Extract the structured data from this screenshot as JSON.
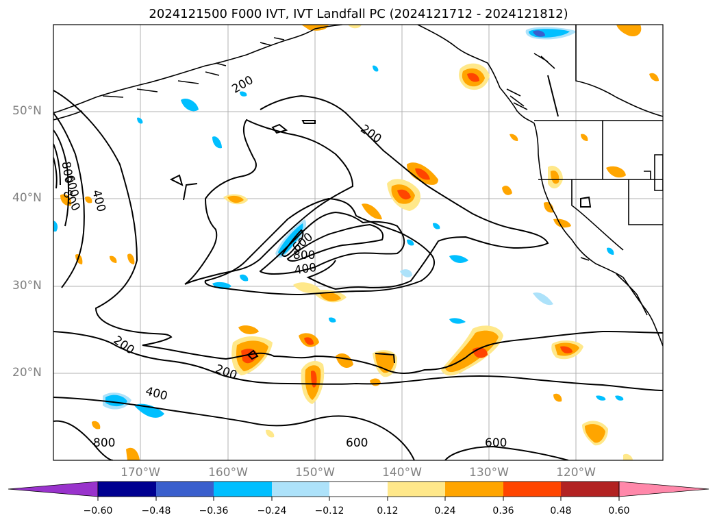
{
  "title": "2024121500 F000 IVT, IVT Landfall PC (2024121712 - 2024121812)",
  "map": {
    "lat_labels": [
      "50°N",
      "40°N",
      "30°N",
      "20°N"
    ],
    "lon_labels": [
      "170°W",
      "160°W",
      "150°W",
      "140°W",
      "130°W",
      "120°W"
    ],
    "contour_labels": [
      "200",
      "200",
      "200",
      "200",
      "400",
      "400",
      "400",
      "600",
      "600",
      "600",
      "600",
      "800",
      "800",
      "800",
      "800"
    ],
    "colors": {
      "coast": "#000000",
      "grid": "#b0b0b0",
      "contour": "#000000"
    }
  },
  "colorbar": {
    "ticks": [
      "−0.60",
      "−0.48",
      "−0.36",
      "−0.24",
      "−0.12",
      "0.12",
      "0.24",
      "0.36",
      "0.48",
      "0.60"
    ],
    "colors": [
      "#9933cc",
      "#000090",
      "#3a5fcd",
      "#00bfff",
      "#ade2fa",
      "#ffffff",
      "#ffe88a",
      "#ffa500",
      "#ff4500",
      "#b22222",
      "#ff88aa"
    ]
  }
}
